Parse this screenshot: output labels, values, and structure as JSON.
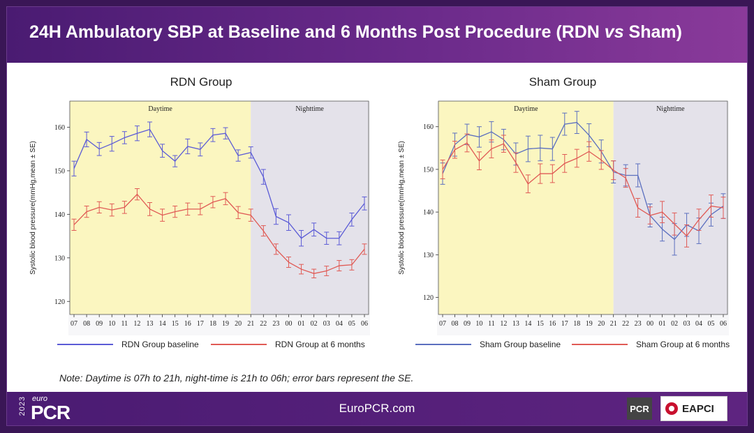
{
  "slide": {
    "title_main": "24H Ambulatory SBP at Baseline and 6 Months Post Procedure (RDN ",
    "title_vs": "vs",
    "title_end": " Sham)",
    "note": "Note: Daytime is 07h to 21h, night-time is 21h to 06h; error bars represent the SE.",
    "footer": {
      "logo_year": "2023",
      "logo_euro": "euro",
      "logo_pcr": "PCR",
      "site": "EuroPCR.com",
      "badge": "PCR",
      "partner": "EAPCI"
    }
  },
  "chart_data": [
    {
      "type": "line",
      "title": "RDN Group",
      "ylabel": "Systolic blood pressure(mmHg,mean ± SE)",
      "ylim": [
        117,
        166
      ],
      "yticks": [
        120,
        130,
        140,
        150,
        160
      ],
      "categories": [
        "07",
        "08",
        "09",
        "10",
        "11",
        "12",
        "13",
        "14",
        "15",
        "16",
        "17",
        "18",
        "19",
        "20",
        "21",
        "22",
        "23",
        "00",
        "01",
        "02",
        "03",
        "04",
        "05",
        "06"
      ],
      "shading": [
        {
          "label": "Daytime",
          "from": "07",
          "to": "21",
          "color": "#fbf6c0"
        },
        {
          "label": "Nighttime",
          "from": "21",
          "to": "06",
          "color": "#e4e2ea"
        }
      ],
      "grid": false,
      "legend_position": "bottom",
      "series": [
        {
          "name": "RDN Group baseline",
          "color": "#5b5bd6",
          "values": [
            150.5,
            157.2,
            155.0,
            156.2,
            157.6,
            158.6,
            159.5,
            154.6,
            152.2,
            155.6,
            154.9,
            158.2,
            158.6,
            153.5,
            154.2,
            148.6,
            139.5,
            138.1,
            134.5,
            136.5,
            134.5,
            134.5,
            138.8,
            142.5
          ],
          "se": [
            1.7,
            1.7,
            1.5,
            1.7,
            1.4,
            1.7,
            1.7,
            1.5,
            1.3,
            1.7,
            1.5,
            1.5,
            1.3,
            1.3,
            1.3,
            1.7,
            1.8,
            1.8,
            1.8,
            1.5,
            1.4,
            1.5,
            1.5,
            1.5
          ]
        },
        {
          "name": "RDN Group at 6 months",
          "color": "#e05a55",
          "values": [
            137.6,
            140.6,
            141.6,
            141.0,
            141.6,
            144.6,
            141.2,
            139.8,
            140.6,
            141.2,
            141.2,
            142.8,
            143.6,
            140.4,
            139.8,
            136.2,
            132.0,
            129.0,
            127.4,
            126.4,
            127.0,
            128.2,
            128.4,
            132.0
          ],
          "se": [
            1.3,
            1.3,
            1.3,
            1.4,
            1.4,
            1.3,
            1.5,
            1.4,
            1.3,
            1.4,
            1.3,
            1.3,
            1.4,
            1.4,
            1.4,
            1.2,
            1.2,
            1.2,
            1.1,
            1.0,
            1.1,
            1.2,
            1.2,
            1.2
          ]
        }
      ]
    },
    {
      "type": "line",
      "title": "Sham Group",
      "ylabel": "Systolic blood pressure(mmHg,mean ± SE)",
      "ylim": [
        116,
        166
      ],
      "yticks": [
        120,
        130,
        140,
        150,
        160
      ],
      "categories": [
        "07",
        "08",
        "09",
        "10",
        "11",
        "12",
        "13",
        "14",
        "15",
        "16",
        "17",
        "18",
        "19",
        "20",
        "21",
        "22",
        "23",
        "00",
        "01",
        "02",
        "03",
        "04",
        "05",
        "06"
      ],
      "shading": [
        {
          "label": "Daytime",
          "from": "07",
          "to": "21",
          "color": "#fbf6c0"
        },
        {
          "label": "Nighttime",
          "from": "21",
          "to": "06",
          "color": "#e4e2ea"
        }
      ],
      "grid": false,
      "legend_position": "bottom",
      "series": [
        {
          "name": "Sham Group baseline",
          "color": "#5b6fbf",
          "values": [
            149.0,
            155.8,
            158.2,
            157.6,
            158.8,
            157.0,
            153.6,
            154.8,
            155.0,
            154.8,
            160.6,
            161.0,
            158.0,
            154.2,
            149.4,
            148.6,
            148.6,
            139.2,
            136.0,
            133.6,
            137.0,
            135.6,
            139.4,
            141.4
          ],
          "se": [
            2.5,
            2.7,
            2.4,
            2.4,
            2.4,
            2.4,
            2.6,
            3.0,
            3.0,
            2.7,
            2.6,
            2.6,
            2.7,
            2.7,
            2.6,
            2.5,
            2.7,
            2.7,
            2.8,
            3.7,
            2.7,
            3.0,
            2.7,
            2.9
          ]
        },
        {
          "name": "Sham Group at 6 months",
          "color": "#e05a55",
          "values": [
            150.0,
            154.6,
            156.2,
            152.0,
            154.8,
            156.0,
            151.6,
            146.6,
            149.0,
            149.0,
            151.4,
            152.6,
            154.2,
            152.2,
            149.8,
            148.0,
            141.0,
            139.2,
            140.0,
            137.2,
            134.4,
            138.2,
            141.4,
            141.0
          ],
          "se": [
            2.2,
            2.0,
            2.1,
            2.1,
            2.1,
            2.0,
            2.3,
            2.1,
            2.3,
            2.1,
            2.1,
            2.1,
            2.3,
            2.2,
            2.2,
            2.2,
            2.2,
            2.0,
            2.5,
            2.6,
            2.6,
            2.5,
            2.6,
            2.5
          ]
        }
      ]
    }
  ]
}
